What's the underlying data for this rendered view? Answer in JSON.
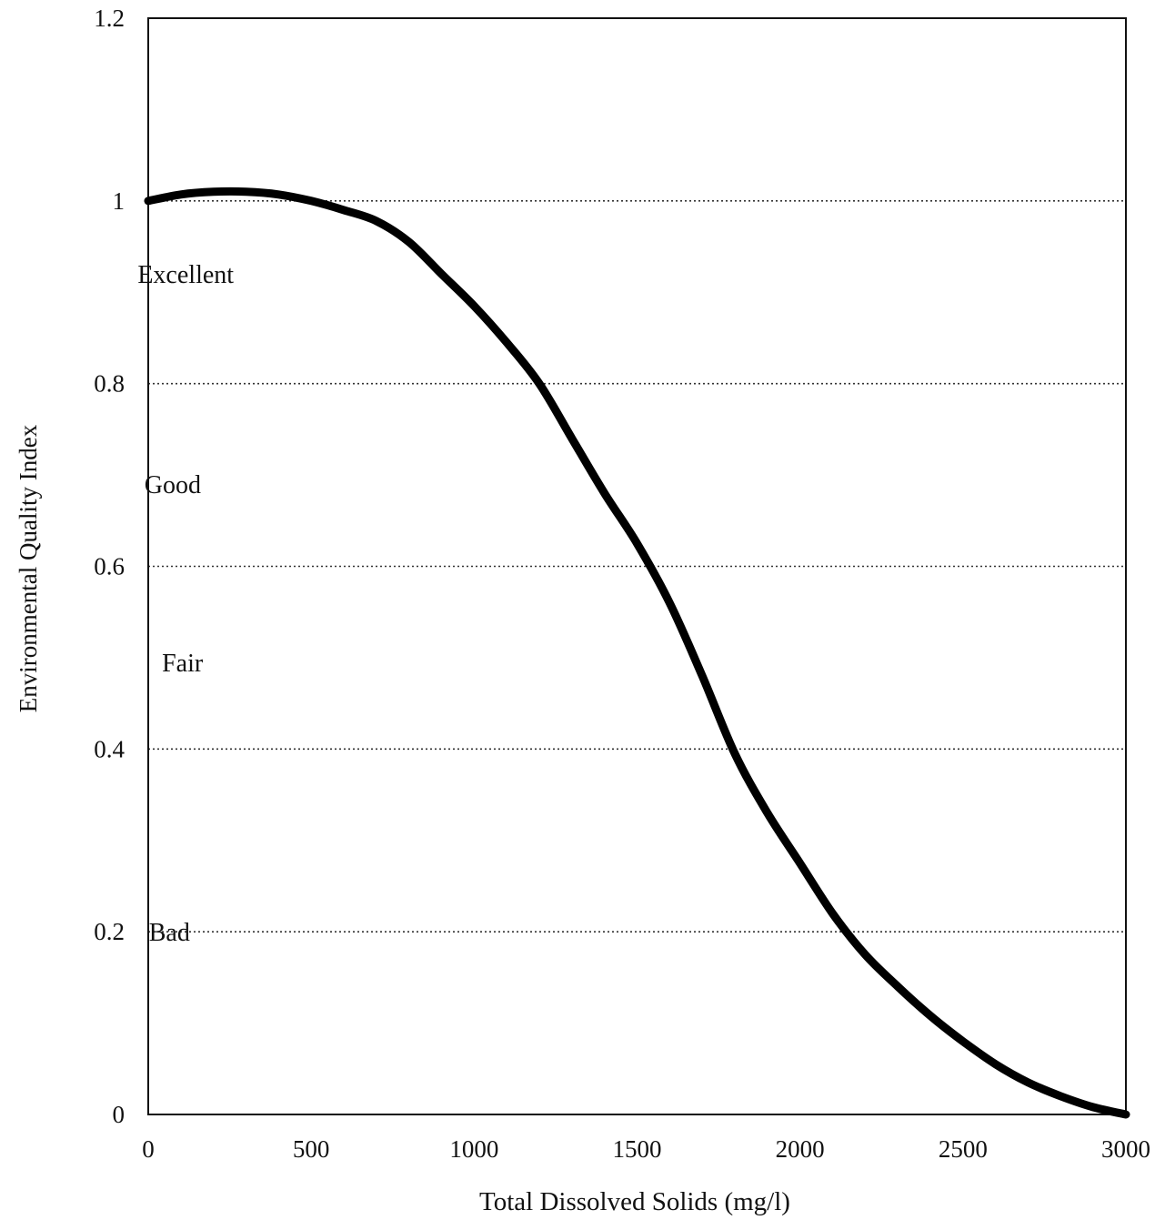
{
  "chart_data": {
    "type": "line",
    "title": "",
    "xlabel": "Total Dissolved Solids (mg/l)",
    "ylabel": "Environmental Quality Index",
    "xlim": [
      0,
      3000
    ],
    "ylim": [
      0,
      1.2
    ],
    "x_ticks": [
      0,
      500,
      1000,
      1500,
      2000,
      2500,
      3000
    ],
    "x_tick_labels": [
      "0",
      "500",
      "1000",
      "1500",
      "2000",
      "2500",
      "3000"
    ],
    "y_ticks": [
      0,
      0.2,
      0.4,
      0.6,
      0.8,
      1,
      1.2
    ],
    "y_tick_labels": [
      "0",
      "0.2",
      "0.4",
      "0.6",
      "0.8",
      "1",
      "1.2"
    ],
    "grid": "horizontal dotted at 0.2, 0.4, 0.6, 0.8, 1",
    "series": [
      {
        "color": "#000000",
        "x": [
          0,
          100,
          200,
          300,
          400,
          500,
          600,
          700,
          800,
          900,
          1000,
          1100,
          1200,
          1300,
          1400,
          1500,
          1600,
          1700,
          1800,
          1900,
          2000,
          2100,
          2200,
          2300,
          2400,
          2500,
          2600,
          2700,
          2800,
          2900,
          3000
        ],
        "y": [
          1.0,
          1.007,
          1.01,
          1.01,
          1.007,
          1.0,
          0.99,
          0.978,
          0.955,
          0.92,
          0.885,
          0.845,
          0.8,
          0.74,
          0.68,
          0.625,
          0.56,
          0.48,
          0.395,
          0.33,
          0.275,
          0.22,
          0.175,
          0.14,
          0.108,
          0.08,
          0.055,
          0.035,
          0.02,
          0.008,
          0.0
        ]
      }
    ],
    "annotations": [
      {
        "text": "Excellent",
        "x": 115,
        "y": 0.91
      },
      {
        "text": "Good",
        "x": 75,
        "y": 0.68
      },
      {
        "text": "Fair",
        "x": 105,
        "y": 0.485
      },
      {
        "text": "Bad",
        "x": 65,
        "y": 0.19
      }
    ]
  }
}
